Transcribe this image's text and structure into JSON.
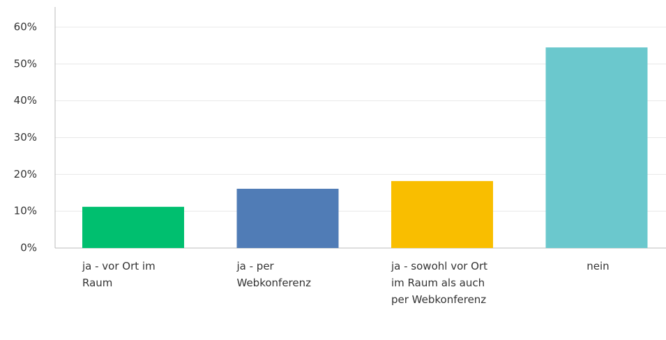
{
  "chart_data": {
    "type": "bar",
    "categories": [
      "ja - vor Ort im Raum",
      "ja - per Webkonferenz",
      "ja - sowohl vor Ort im Raum als auch per Webkonferenz",
      "nein"
    ],
    "values": [
      11.2,
      16.1,
      18.2,
      54.5
    ],
    "colors": [
      "#00bf6f",
      "#507cb6",
      "#f9be00",
      "#6bc8cd"
    ],
    "ylim": [
      0,
      60
    ],
    "yticks": [
      {
        "value": 0,
        "label": "0%"
      },
      {
        "value": 10,
        "label": "10%"
      },
      {
        "value": 20,
        "label": "20%"
      },
      {
        "value": 30,
        "label": "30%"
      },
      {
        "value": 40,
        "label": "40%"
      },
      {
        "value": 50,
        "label": "50%"
      },
      {
        "value": 60,
        "label": "60%"
      }
    ],
    "grid": true
  }
}
